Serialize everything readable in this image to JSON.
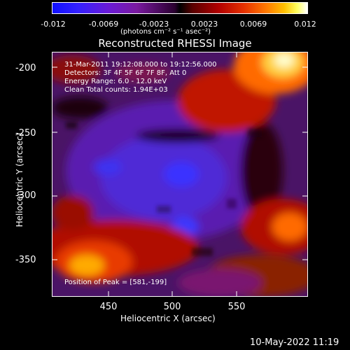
{
  "colorbar": {
    "ticks": [
      "-0.012",
      "-0.0069",
      "-0.0023",
      "0.0023",
      "0.0069",
      "0.012"
    ],
    "units": "(photons cm⁻² s⁻¹ asec⁻²)"
  },
  "title": "Reconstructed RHESSI Image",
  "annotations": {
    "time": "31-Mar-2011 19:12:08.000 to 19:12:56.000",
    "detectors": "Detectors: 3F 4F 5F 6F 7F 8F, Att 0",
    "energy": "Energy Range: 6.0 - 12.0 keV",
    "clean": "Clean     Total counts: 1.94E+03",
    "peak": "Position of Peak = [581,-199]"
  },
  "axes": {
    "y_ticks": [
      "-200",
      "-250",
      "-300",
      "-350"
    ],
    "x_ticks": [
      "450",
      "500",
      "550"
    ],
    "ylabel": "Heliocentric Y (arcsec)",
    "xlabel": "Heliocentric X (arcsec)"
  },
  "footer": "10-May-2022 11:19"
}
